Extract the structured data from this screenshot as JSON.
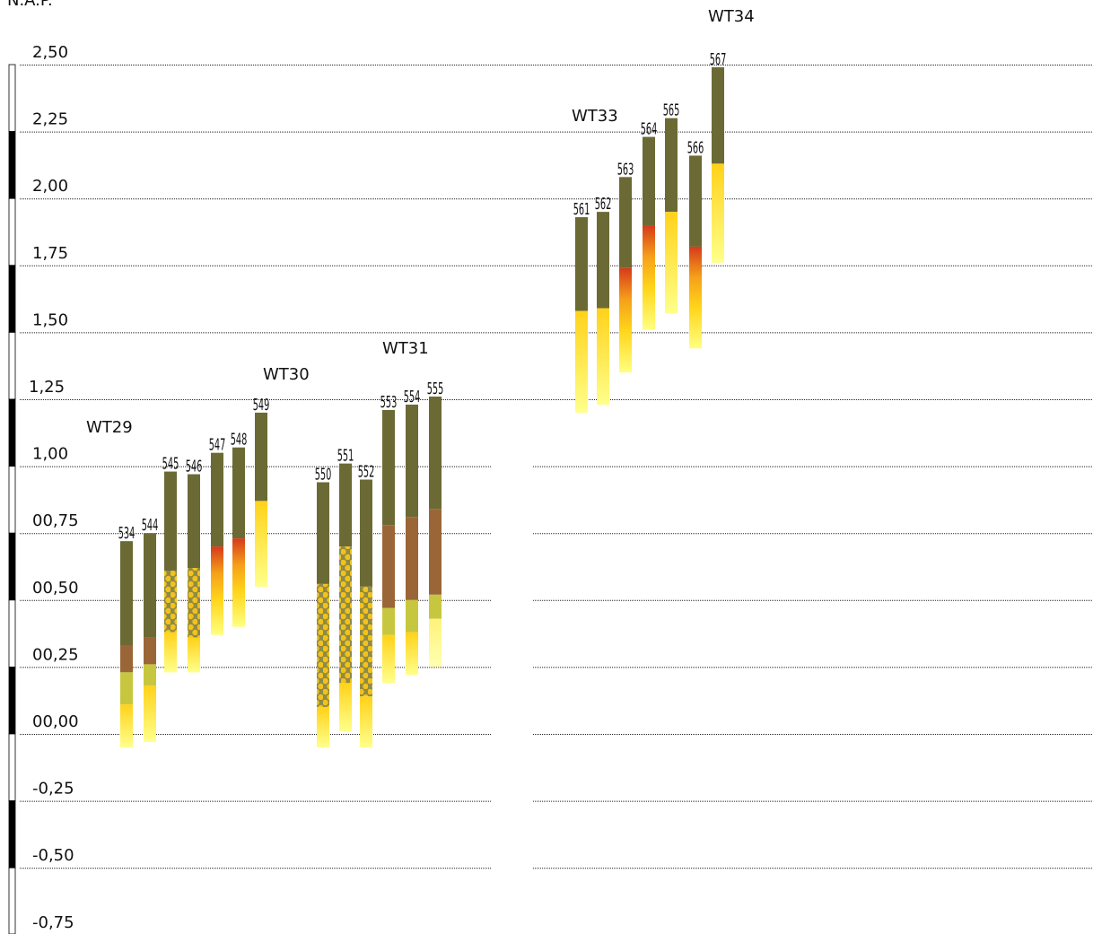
{
  "axis": {
    "title": "N.A.P.",
    "ticks": [
      2.5,
      2.25,
      2.0,
      1.75,
      1.5,
      1.25,
      1.0,
      0.75,
      0.5,
      0.25,
      0.0,
      -0.25,
      -0.5,
      -0.75
    ],
    "tick_labels": [
      "2,50",
      "2,25",
      "2,00",
      "1,75",
      "1,50",
      "1,25",
      "1,00",
      "00,75",
      "00,50",
      "00,25",
      "00,00",
      "-0,25",
      "-0,50",
      "-0,75"
    ]
  },
  "colors": {
    "olive": "#6b6a35",
    "brown": "#9b6637",
    "lime": "#c7c73f",
    "yellow": "#ffdd1a",
    "pale_yellow": "#ffff80",
    "red": "#d63a1a",
    "dot_yellow": "#f2c21b",
    "scale_black": "#000000"
  },
  "groups": [
    {
      "name": "WT29",
      "bars": [
        "534",
        "544"
      ]
    },
    {
      "name": "WT30",
      "bars": [
        "545",
        "546",
        "547",
        "548",
        "549"
      ]
    },
    {
      "name": "WT31",
      "bars": [
        "550",
        "551",
        "552",
        "553",
        "554",
        "555"
      ]
    },
    {
      "name": "WT33",
      "bars": [
        "561",
        "562",
        "563",
        "564",
        "565",
        "566"
      ]
    },
    {
      "name": "WT34",
      "bars": [
        "567"
      ]
    }
  ],
  "bars": [
    {
      "id": "534",
      "layers": [
        {
          "top": 0.72,
          "bottom": 0.33,
          "type": "olive"
        },
        {
          "top": 0.33,
          "bottom": 0.23,
          "type": "brown"
        },
        {
          "top": 0.23,
          "bottom": 0.11,
          "type": "lime"
        },
        {
          "top": 0.11,
          "bottom": -0.05,
          "type": "yellow_pale"
        }
      ]
    },
    {
      "id": "544",
      "layers": [
        {
          "top": 0.75,
          "bottom": 0.36,
          "type": "olive"
        },
        {
          "top": 0.36,
          "bottom": 0.26,
          "type": "brown"
        },
        {
          "top": 0.26,
          "bottom": 0.18,
          "type": "lime"
        },
        {
          "top": 0.18,
          "bottom": -0.03,
          "type": "yellow_pale"
        }
      ]
    },
    {
      "id": "545",
      "layers": [
        {
          "top": 0.98,
          "bottom": 0.61,
          "type": "olive"
        },
        {
          "top": 0.61,
          "bottom": 0.38,
          "type": "dotted"
        },
        {
          "top": 0.38,
          "bottom": 0.23,
          "type": "yellow_pale"
        }
      ]
    },
    {
      "id": "546",
      "layers": [
        {
          "top": 0.97,
          "bottom": 0.62,
          "type": "olive"
        },
        {
          "top": 0.62,
          "bottom": 0.36,
          "type": "dotted"
        },
        {
          "top": 0.36,
          "bottom": 0.23,
          "type": "yellow_pale"
        }
      ]
    },
    {
      "id": "547",
      "layers": [
        {
          "top": 1.05,
          "bottom": 0.7,
          "type": "olive"
        },
        {
          "top": 0.7,
          "bottom": 0.37,
          "type": "red_yellow"
        }
      ]
    },
    {
      "id": "548",
      "layers": [
        {
          "top": 1.07,
          "bottom": 0.73,
          "type": "olive"
        },
        {
          "top": 0.73,
          "bottom": 0.4,
          "type": "red_yellow"
        }
      ]
    },
    {
      "id": "549",
      "layers": [
        {
          "top": 1.2,
          "bottom": 0.87,
          "type": "olive"
        },
        {
          "top": 0.87,
          "bottom": 0.55,
          "type": "yellow_pale"
        }
      ]
    },
    {
      "id": "550",
      "layers": [
        {
          "top": 0.94,
          "bottom": 0.56,
          "type": "olive"
        },
        {
          "top": 0.56,
          "bottom": 0.1,
          "type": "dotted"
        },
        {
          "top": 0.1,
          "bottom": -0.05,
          "type": "yellow_pale"
        }
      ]
    },
    {
      "id": "551",
      "layers": [
        {
          "top": 1.01,
          "bottom": 0.7,
          "type": "olive"
        },
        {
          "top": 0.7,
          "bottom": 0.19,
          "type": "dotted"
        },
        {
          "top": 0.19,
          "bottom": 0.01,
          "type": "yellow_pale"
        }
      ]
    },
    {
      "id": "552",
      "layers": [
        {
          "top": 0.95,
          "bottom": 0.55,
          "type": "olive"
        },
        {
          "top": 0.55,
          "bottom": 0.14,
          "type": "dotted"
        },
        {
          "top": 0.14,
          "bottom": -0.05,
          "type": "yellow_pale"
        }
      ]
    },
    {
      "id": "553",
      "layers": [
        {
          "top": 1.21,
          "bottom": 0.78,
          "type": "olive"
        },
        {
          "top": 0.78,
          "bottom": 0.47,
          "type": "brown"
        },
        {
          "top": 0.47,
          "bottom": 0.37,
          "type": "lime"
        },
        {
          "top": 0.37,
          "bottom": 0.19,
          "type": "yellow_pale"
        }
      ]
    },
    {
      "id": "554",
      "layers": [
        {
          "top": 1.23,
          "bottom": 0.81,
          "type": "olive"
        },
        {
          "top": 0.81,
          "bottom": 0.5,
          "type": "brown"
        },
        {
          "top": 0.5,
          "bottom": 0.38,
          "type": "lime"
        },
        {
          "top": 0.38,
          "bottom": 0.22,
          "type": "yellow_pale"
        }
      ]
    },
    {
      "id": "555",
      "layers": [
        {
          "top": 1.26,
          "bottom": 0.84,
          "type": "olive"
        },
        {
          "top": 0.84,
          "bottom": 0.52,
          "type": "brown"
        },
        {
          "top": 0.52,
          "bottom": 0.43,
          "type": "lime"
        },
        {
          "top": 0.43,
          "bottom": 0.25,
          "type": "pale"
        }
      ]
    },
    {
      "id": "561",
      "layers": [
        {
          "top": 1.93,
          "bottom": 1.58,
          "type": "olive"
        },
        {
          "top": 1.58,
          "bottom": 1.2,
          "type": "yellow_pale"
        }
      ]
    },
    {
      "id": "562",
      "layers": [
        {
          "top": 1.95,
          "bottom": 1.59,
          "type": "olive"
        },
        {
          "top": 1.59,
          "bottom": 1.23,
          "type": "yellow_pale"
        }
      ]
    },
    {
      "id": "563",
      "layers": [
        {
          "top": 2.08,
          "bottom": 1.74,
          "type": "olive"
        },
        {
          "top": 1.74,
          "bottom": 1.35,
          "type": "red_yellow"
        }
      ]
    },
    {
      "id": "564",
      "layers": [
        {
          "top": 2.23,
          "bottom": 1.9,
          "type": "olive"
        },
        {
          "top": 1.9,
          "bottom": 1.51,
          "type": "red_yellow"
        }
      ]
    },
    {
      "id": "565",
      "layers": [
        {
          "top": 2.3,
          "bottom": 1.95,
          "type": "olive"
        },
        {
          "top": 1.95,
          "bottom": 1.57,
          "type": "yellow_pale"
        }
      ]
    },
    {
      "id": "566",
      "layers": [
        {
          "top": 2.16,
          "bottom": 1.82,
          "type": "olive"
        },
        {
          "top": 1.82,
          "bottom": 1.44,
          "type": "red_yellow"
        }
      ]
    },
    {
      "id": "567",
      "layers": [
        {
          "top": 2.49,
          "bottom": 2.13,
          "type": "olive"
        },
        {
          "top": 2.13,
          "bottom": 1.76,
          "type": "yellow_pale"
        }
      ]
    }
  ]
}
